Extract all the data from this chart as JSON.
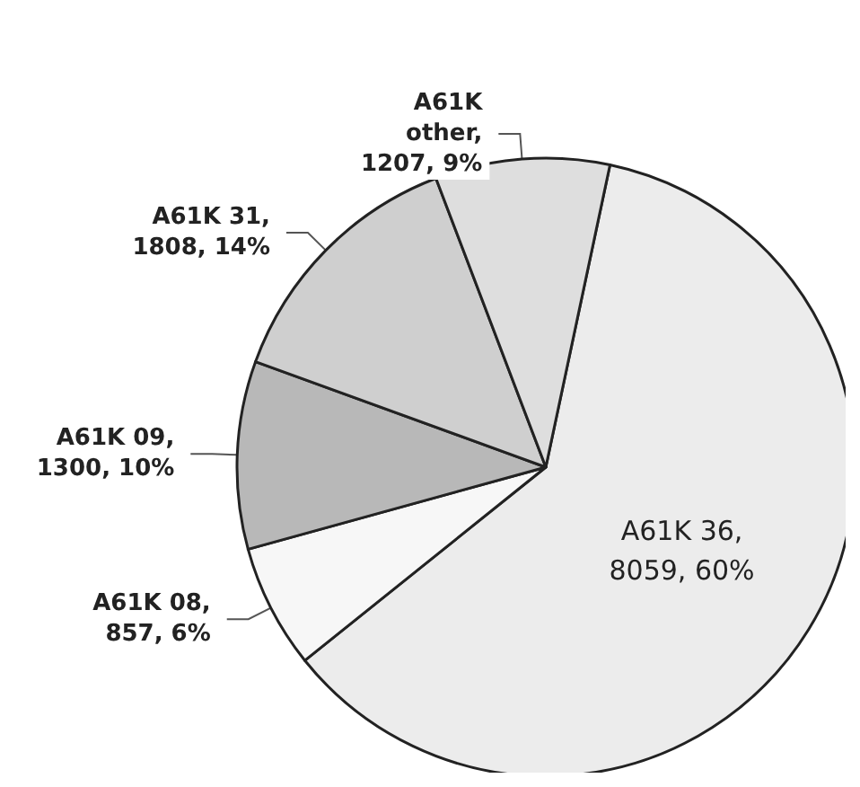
{
  "chart_data": {
    "type": "pie",
    "categories": [
      "A61K 36",
      "A61K 08",
      "A61K 09",
      "A61K 31",
      "A61K other"
    ],
    "values": [
      8059,
      857,
      1300,
      1808,
      1207
    ],
    "colors": [
      "#ececec",
      "#f7f7f7",
      "#b8b8b8",
      "#cfcfcf",
      "#dedede"
    ],
    "value_labels": [
      ",\n8059, 60%",
      ",\n857, 6%",
      ",\n1300, 10%",
      ",\n1808, 14%",
      ",\n1207, 9%"
    ],
    "legend": false
  }
}
